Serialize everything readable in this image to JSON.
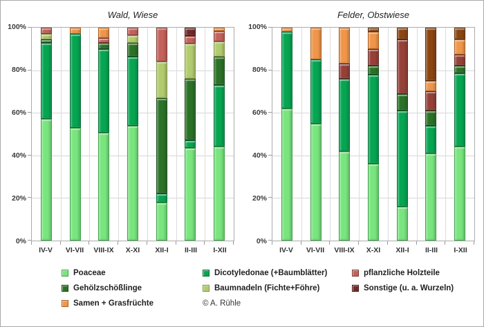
{
  "figure": {
    "background": "#ffffff",
    "border_color": "#a8a8a8"
  },
  "series": {
    "poaceae": {
      "label": "Poaceae",
      "fill": "#78e57e",
      "border": "#3fa048"
    },
    "dicotyledonae": {
      "label": "Dicotyledonae (+Baumblätter)",
      "fill": "#06a551",
      "border": "#046b35"
    },
    "gehoelzschoesslinge": {
      "label": "Gehölzschößlinge",
      "fill": "#2b7226",
      "border": "#1a4717"
    },
    "baumnadeln": {
      "label": "Baumnadeln (Fichte+Föhre)",
      "fill": "#b2cb6e",
      "border": "#7e9447"
    },
    "holzteile": {
      "label": "pflanzliche Holzteile",
      "fill": "#c4615a",
      "border": "#7e332e"
    },
    "samen": {
      "label": "Samen + Grasfrüchte",
      "fill": "#f0964a",
      "border": "#a85a1a"
    },
    "sonstige": {
      "label": "Sonstige (u. a. Wurzeln)",
      "fill": "#702b27",
      "border": "#451715"
    }
  },
  "stack_order": [
    "poaceae",
    "dicotyledonae",
    "gehoelzschoesslinge",
    "baumnadeln",
    "holzteile",
    "samen",
    "sonstige"
  ],
  "y_axis": {
    "ticks": [
      0,
      20,
      40,
      60,
      80,
      100
    ],
    "suffix": "%"
  },
  "chart_data": [
    {
      "type": "bar",
      "stacked": true,
      "unit": "percent",
      "title": "Wald, Wiese",
      "ylim": [
        0,
        100
      ],
      "grid": true,
      "categories": [
        "IV-V",
        "VI-VII",
        "VIII-IX",
        "X-XI",
        "XII-I",
        "II-III",
        "I-XII"
      ],
      "series": [
        {
          "key": "poaceae",
          "name": "Poaceae",
          "values": [
            57,
            53,
            50.5,
            54,
            18,
            43.5,
            44
          ]
        },
        {
          "key": "dicotyledonae",
          "name": "Dicotyledonae (+Baumblätter)",
          "values": [
            36,
            44,
            39.5,
            32.5,
            4,
            3.5,
            29
          ]
        },
        {
          "key": "gehoelzschoesslinge",
          "name": "Gehölzschößlinge",
          "values": [
            1.5,
            0,
            3,
            6.5,
            45,
            29,
            13.5
          ]
        },
        {
          "key": "baumnadeln",
          "name": "Baumnadeln (Fichte+Föhre)",
          "values": [
            2.5,
            0,
            0,
            3.5,
            17,
            16.5,
            7
          ]
        },
        {
          "key": "holzteile",
          "name": "pflanzliche Holzteile",
          "values": [
            3,
            0,
            2,
            3.5,
            16,
            3.5,
            5
          ]
        },
        {
          "key": "samen",
          "name": "Samen + Grasfrüchte",
          "values": [
            0,
            3,
            5,
            0,
            0,
            0,
            1.5
          ]
        },
        {
          "key": "sonstige",
          "name": "Sonstige (u. a. Wurzeln)",
          "values": [
            0,
            0,
            0,
            0,
            0,
            4,
            0
          ]
        }
      ]
    },
    {
      "type": "bar",
      "stacked": true,
      "unit": "percent",
      "title": "Felder, Obstwiese",
      "ylim": [
        0,
        100
      ],
      "grid": true,
      "categories": [
        "IV-V",
        "VI-VII",
        "VIII-IX",
        "X-XI",
        "XII-I",
        "II-III",
        "I-XII"
      ],
      "color_overrides": {
        "holzteile": {
          "fill": "#964038",
          "border": "#5f2521"
        },
        "sonstige": {
          "fill": "#8b4511",
          "border": "#562a08"
        }
      },
      "series": [
        {
          "key": "poaceae",
          "name": "Poaceae",
          "values": [
            62,
            55,
            42,
            36,
            16,
            41,
            44
          ]
        },
        {
          "key": "dicotyledonae",
          "name": "Dicotyledonae (+Baumblätter)",
          "values": [
            36,
            30,
            34,
            42,
            45,
            13,
            34.5
          ]
        },
        {
          "key": "gehoelzschoesslinge",
          "name": "Gehölzschößlinge",
          "values": [
            0,
            0,
            0,
            4,
            8,
            7,
            3.5
          ]
        },
        {
          "key": "baumnadeln",
          "name": "Baumnadeln (Fichte+Föhre)",
          "values": [
            0,
            0,
            0,
            0,
            0,
            0,
            0
          ]
        },
        {
          "key": "holzteile",
          "name": "pflanzliche Holzteile",
          "values": [
            0,
            0,
            7,
            8,
            25.5,
            9,
            5.5
          ]
        },
        {
          "key": "samen",
          "name": "Samen + Grasfrüchte",
          "values": [
            2,
            15,
            17,
            8,
            0,
            5,
            7
          ]
        },
        {
          "key": "sonstige",
          "name": "Sonstige (u. a. Wurzeln)",
          "values": [
            0,
            0,
            0,
            2,
            5.5,
            25,
            5.5
          ]
        }
      ]
    }
  ],
  "legend": {
    "credit": "© A. Rühle",
    "columns": [
      [
        {
          "key": "poaceae"
        },
        {
          "key": "gehoelzschoesslinge"
        },
        {
          "key": "samen"
        }
      ],
      [
        {
          "key": "dicotyledonae"
        },
        {
          "key": "baumnadeln"
        },
        {
          "type": "credit"
        }
      ],
      [
        {
          "key": "holzteile"
        },
        {
          "key": "sonstige"
        }
      ]
    ]
  }
}
